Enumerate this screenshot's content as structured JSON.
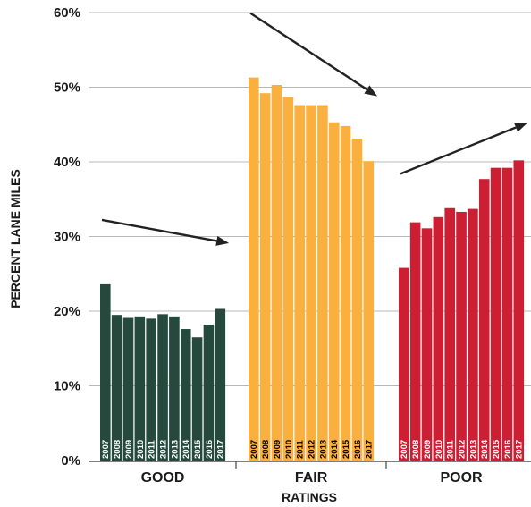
{
  "chart_data": {
    "type": "bar",
    "title": "",
    "xlabel": "RATINGS",
    "ylabel": "PERCENT LANE MILES",
    "ylim": [
      0,
      60
    ],
    "yticks": [
      "0%",
      "10%",
      "20%",
      "30%",
      "40%",
      "50%",
      "60%"
    ],
    "grid": true,
    "years": [
      "2007",
      "2008",
      "2009",
      "2010",
      "2011",
      "2012",
      "2013",
      "2014",
      "2015",
      "2016",
      "2017"
    ],
    "groups": [
      {
        "name": "GOOD",
        "color": "#254a3d",
        "label_color": "#ffffff",
        "values": [
          23.6,
          19.5,
          19.1,
          19.3,
          19.0,
          19.6,
          19.3,
          17.6,
          16.5,
          18.2,
          20.3
        ],
        "trend": "decreasing"
      },
      {
        "name": "FAIR",
        "color": "#f9b03f",
        "label_color": "#000000",
        "values": [
          51.3,
          49.2,
          50.3,
          48.7,
          47.6,
          47.6,
          47.6,
          45.3,
          44.8,
          43.1,
          40.1
        ],
        "trend": "decreasing"
      },
      {
        "name": "POOR",
        "color": "#cd1f33",
        "label_color": "#ffffff",
        "values": [
          25.8,
          31.9,
          31.1,
          32.6,
          33.8,
          33.3,
          33.7,
          37.7,
          39.2,
          39.2,
          40.2
        ],
        "trend": "increasing"
      }
    ]
  }
}
